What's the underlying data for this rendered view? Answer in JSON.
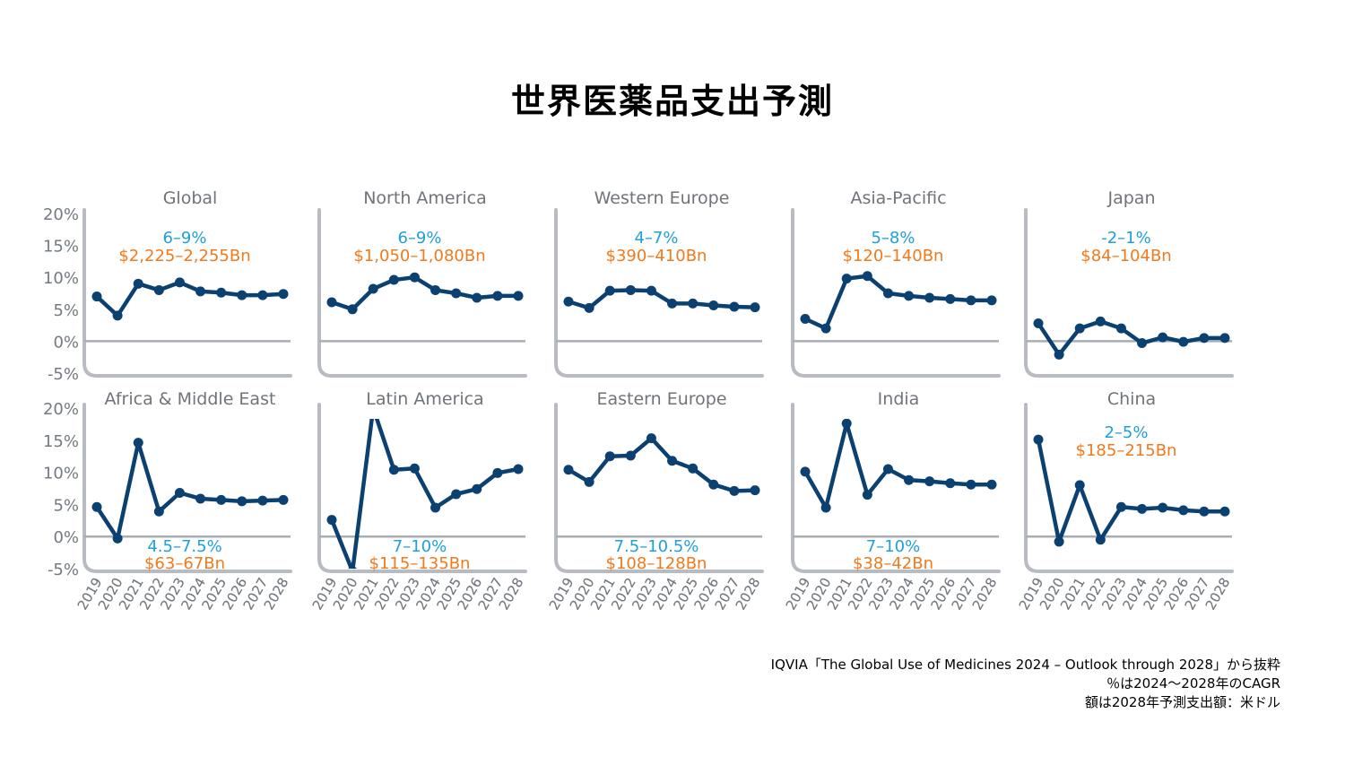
{
  "title": "世界医薬品支出予測",
  "source_lines": [
    "IQVIA「The Global Use of Medicines 2024 – Outlook through 2028」から抜粋",
    "％は2024〜2028年のCAGR",
    "額は2028年予測支出額：米ドル"
  ],
  "colors": {
    "line": "#0b4170",
    "axis": "#b8bcc2",
    "zero_line": "#a9aeb5",
    "title_text": "#6f747a",
    "tick_text": "#737a82",
    "cagr": "#1fa0db",
    "amount": "#f07a1e"
  },
  "chart_data": [
    {
      "type": "line",
      "title": "Global",
      "x": [
        "2019",
        "2020",
        "2021",
        "2022",
        "2023",
        "2024",
        "2025",
        "2026",
        "2027",
        "2028"
      ],
      "y_ticks": [
        "20%",
        "15%",
        "10%",
        "5%",
        "0%",
        "-5%"
      ],
      "ylim": [
        -5,
        20
      ],
      "values": [
        7,
        4,
        9,
        8,
        9.2,
        7.8,
        7.6,
        7.2,
        7.2,
        7.4
      ],
      "annotation_cagr": "6–9%",
      "annotation_amount": "$2,225–2,255Bn",
      "annotation_position": "top"
    },
    {
      "type": "line",
      "title": "North America",
      "x": [
        "2019",
        "2020",
        "2021",
        "2022",
        "2023",
        "2024",
        "2025",
        "2026",
        "2027",
        "2028"
      ],
      "ylim": [
        -5,
        20
      ],
      "values": [
        6.1,
        5,
        8.2,
        9.6,
        10,
        8,
        7.5,
        6.8,
        7.1,
        7.1
      ],
      "annotation_cagr": "6–9%",
      "annotation_amount": "$1,050–1,080Bn",
      "annotation_position": "top"
    },
    {
      "type": "line",
      "title": "Western Europe",
      "x": [
        "2019",
        "2020",
        "2021",
        "2022",
        "2023",
        "2024",
        "2025",
        "2026",
        "2027",
        "2028"
      ],
      "ylim": [
        -5,
        20
      ],
      "values": [
        6.2,
        5.2,
        7.9,
        8,
        7.9,
        5.9,
        5.9,
        5.6,
        5.4,
        5.3
      ],
      "annotation_cagr": "4–7%",
      "annotation_amount": "$390–410Bn",
      "annotation_position": "top"
    },
    {
      "type": "line",
      "title": "Asia-Pacific",
      "x": [
        "2019",
        "2020",
        "2021",
        "2022",
        "2023",
        "2024",
        "2025",
        "2026",
        "2027",
        "2028"
      ],
      "ylim": [
        -5,
        20
      ],
      "values": [
        3.5,
        2,
        9.8,
        10.2,
        7.5,
        7.1,
        6.8,
        6.6,
        6.4,
        6.4
      ],
      "annotation_cagr": "5–8%",
      "annotation_amount": "$120–140Bn",
      "annotation_position": "top"
    },
    {
      "type": "line",
      "title": "Japan",
      "x": [
        "2019",
        "2020",
        "2021",
        "2022",
        "2023",
        "2024",
        "2025",
        "2026",
        "2027",
        "2028"
      ],
      "ylim": [
        -5,
        20
      ],
      "values": [
        2.8,
        -2.1,
        2,
        3.1,
        2,
        -0.3,
        0.6,
        -0.1,
        0.5,
        0.5
      ],
      "annotation_cagr": "-2–1%",
      "annotation_amount": "$84–104Bn",
      "annotation_position": "top"
    },
    {
      "type": "line",
      "title": "Africa & Middle East",
      "x": [
        "2019",
        "2020",
        "2021",
        "2022",
        "2023",
        "2024",
        "2025",
        "2026",
        "2027",
        "2028"
      ],
      "y_ticks": [
        "20%",
        "15%",
        "10%",
        "5%",
        "0%",
        "-5%"
      ],
      "ylim": [
        -5,
        20
      ],
      "values": [
        4.6,
        -0.3,
        14.6,
        3.9,
        6.8,
        5.9,
        5.7,
        5.5,
        5.6,
        5.7
      ],
      "annotation_cagr": "4.5–7.5%",
      "annotation_amount": "$63–67Bn",
      "annotation_position": "bottom"
    },
    {
      "type": "line",
      "title": "Latin America",
      "x": [
        "2019",
        "2020",
        "2021",
        "2022",
        "2023",
        "2024",
        "2025",
        "2026",
        "2027",
        "2028"
      ],
      "ylim": [
        -5,
        20
      ],
      "values": [
        2.6,
        -5.4,
        20,
        10.4,
        10.6,
        4.5,
        6.6,
        7.4,
        9.9,
        10.5
      ],
      "annotation_cagr": "7–10%",
      "annotation_amount": "$115–135Bn",
      "annotation_position": "bottom"
    },
    {
      "type": "line",
      "title": "Eastern Europe",
      "x": [
        "2019",
        "2020",
        "2021",
        "2022",
        "2023",
        "2024",
        "2025",
        "2026",
        "2027",
        "2028"
      ],
      "ylim": [
        -5,
        20
      ],
      "values": [
        10.4,
        8.5,
        12.5,
        12.6,
        15.3,
        11.8,
        10.6,
        8.1,
        7.1,
        7.2
      ],
      "annotation_cagr": "7.5–10.5%",
      "annotation_amount": "$108–128Bn",
      "annotation_position": "bottom"
    },
    {
      "type": "line",
      "title": "India",
      "x": [
        "2019",
        "2020",
        "2021",
        "2022",
        "2023",
        "2024",
        "2025",
        "2026",
        "2027",
        "2028"
      ],
      "ylim": [
        -5,
        20
      ],
      "values": [
        10.1,
        4.5,
        17.6,
        6.5,
        10.5,
        8.8,
        8.6,
        8.3,
        8.1,
        8.1
      ],
      "annotation_cagr": "7–10%",
      "annotation_amount": "$38–42Bn",
      "annotation_position": "bottom"
    },
    {
      "type": "line",
      "title": "China",
      "x": [
        "2019",
        "2020",
        "2021",
        "2022",
        "2023",
        "2024",
        "2025",
        "2026",
        "2027",
        "2028"
      ],
      "ylim": [
        -5,
        20
      ],
      "values": [
        15.1,
        -0.8,
        8,
        -0.5,
        4.6,
        4.3,
        4.5,
        4.1,
        3.9,
        3.9
      ],
      "annotation_cagr": "2–5%",
      "annotation_amount": "$185–215Bn",
      "annotation_position": "top"
    }
  ]
}
